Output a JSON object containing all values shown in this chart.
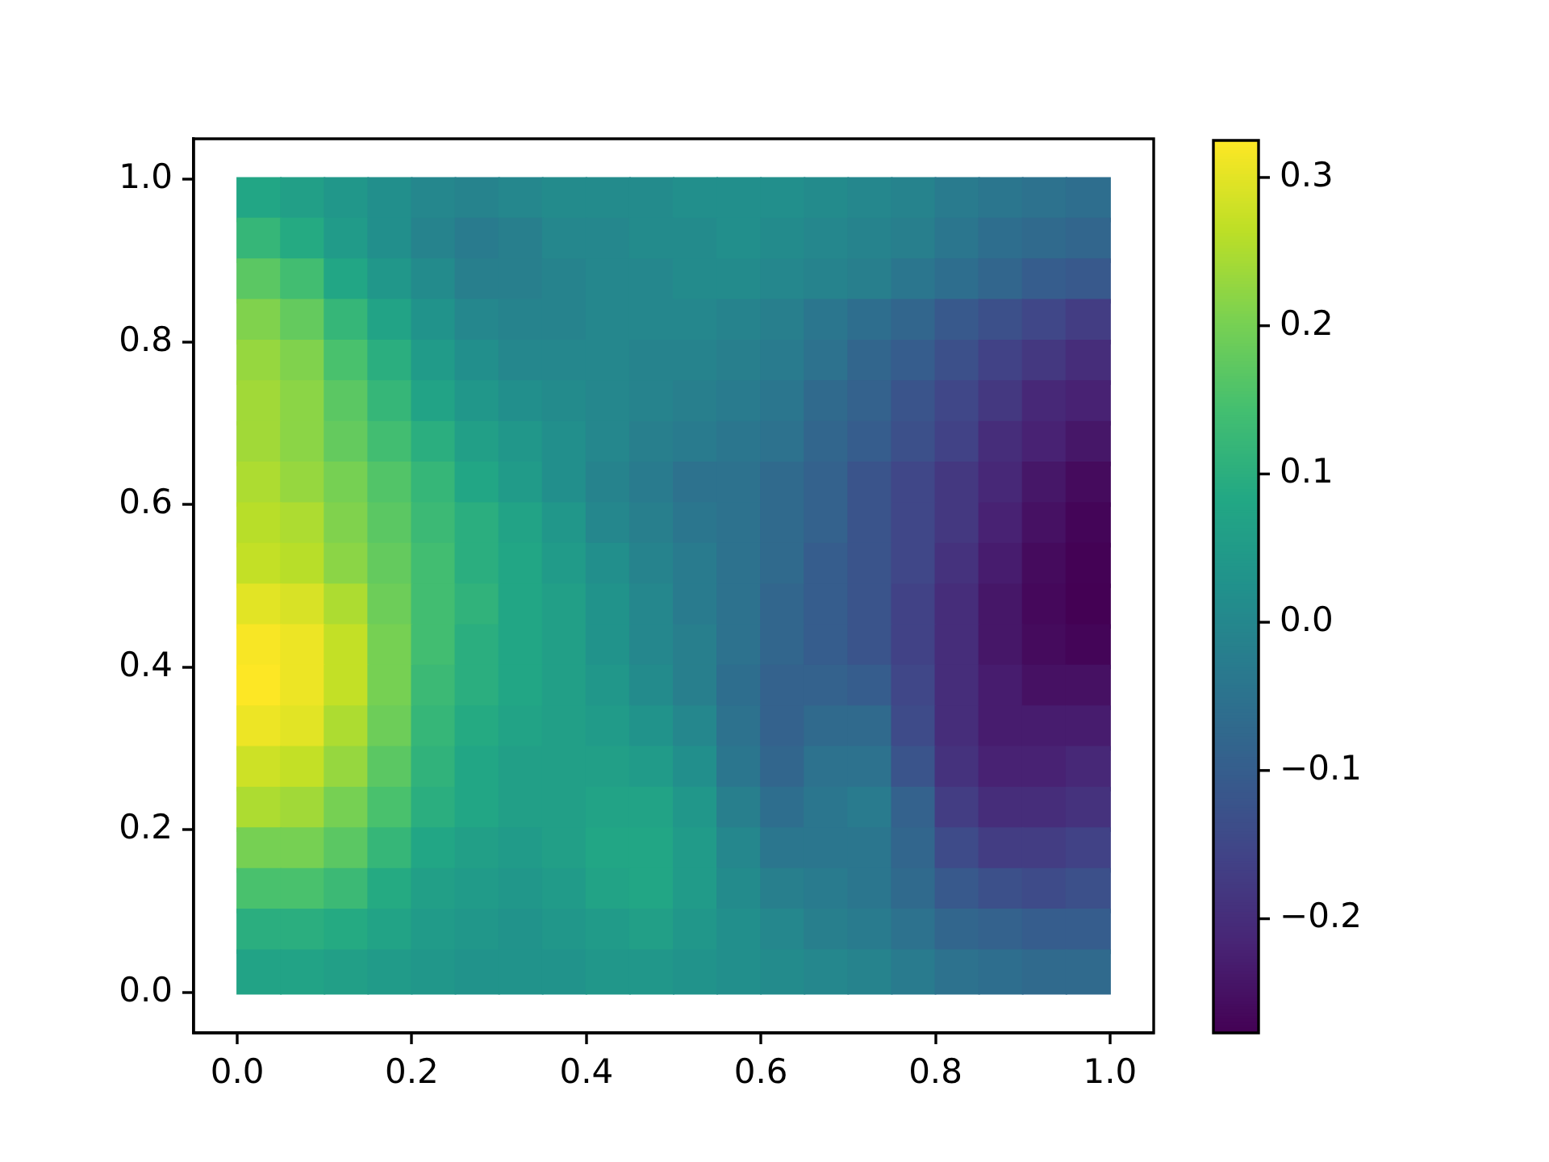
{
  "chart_data": {
    "type": "scatter",
    "marker": "square",
    "grid": false,
    "xlim": [
      -0.05,
      1.05
    ],
    "xticks": [
      {
        "value": 0,
        "label": "0.0"
      },
      0.2,
      0.4,
      0.6,
      0.8,
      {
        "value": 1,
        "label": "1.0"
      }
    ],
    "ylim": [
      -0.05,
      1.05
    ],
    "yticks": [
      {
        "value": 0,
        "label": "0.0"
      },
      0.2,
      0.4,
      0.6,
      0.8,
      {
        "value": 1,
        "label": "1.0"
      }
    ],
    "clim": [
      -0.277,
      0.325
    ],
    "cticks": [
      {
        "value": -0.2,
        "label": "−0.2"
      },
      {
        "value": -0.1,
        "label": "−0.1"
      },
      {
        "value": 0,
        "label": "0.0"
      },
      0.1,
      0.2,
      0.3
    ],
    "x": [
      0.025,
      0.075,
      0.125,
      0.175,
      0.225,
      0.275,
      0.325,
      0.375,
      0.425,
      0.475,
      0.525,
      0.575,
      0.625,
      0.675,
      0.725,
      0.775,
      0.825,
      0.875,
      0.925,
      0.975,
      0.025,
      0.075,
      0.125,
      0.175,
      0.225,
      0.275,
      0.325,
      0.375,
      0.425,
      0.475,
      0.525,
      0.575,
      0.625,
      0.675,
      0.725,
      0.775,
      0.825,
      0.875,
      0.925,
      0.975,
      0.025,
      0.075,
      0.125,
      0.175,
      0.225,
      0.275,
      0.325,
      0.375,
      0.425,
      0.475,
      0.525,
      0.575,
      0.625,
      0.675,
      0.725,
      0.775,
      0.825,
      0.875,
      0.925,
      0.975,
      0.025,
      0.075,
      0.125,
      0.175,
      0.225,
      0.275,
      0.325,
      0.375,
      0.425,
      0.475,
      0.525,
      0.575,
      0.625,
      0.675,
      0.725,
      0.775,
      0.825,
      0.875,
      0.925,
      0.975,
      0.025,
      0.075,
      0.125,
      0.175,
      0.225,
      0.275,
      0.325,
      0.375,
      0.425,
      0.475,
      0.525,
      0.575,
      0.625,
      0.675,
      0.725,
      0.775,
      0.825,
      0.875,
      0.925,
      0.975,
      0.025,
      0.075,
      0.125,
      0.175,
      0.225,
      0.275,
      0.325,
      0.375,
      0.425,
      0.475,
      0.525,
      0.575,
      0.625,
      0.675,
      0.725,
      0.775,
      0.825,
      0.875,
      0.925,
      0.975,
      0.025,
      0.075,
      0.125,
      0.175,
      0.225,
      0.275,
      0.325,
      0.375,
      0.425,
      0.475,
      0.525,
      0.575,
      0.625,
      0.675,
      0.725,
      0.775,
      0.825,
      0.875,
      0.925,
      0.975,
      0.025,
      0.075,
      0.125,
      0.175,
      0.225,
      0.275,
      0.325,
      0.375,
      0.425,
      0.475,
      0.525,
      0.575,
      0.625,
      0.675,
      0.725,
      0.775,
      0.825,
      0.875,
      0.925,
      0.975,
      0.025,
      0.075,
      0.125,
      0.175,
      0.225,
      0.275,
      0.325,
      0.375,
      0.425,
      0.475,
      0.525,
      0.575,
      0.625,
      0.675,
      0.725,
      0.775,
      0.825,
      0.875,
      0.925,
      0.975,
      0.025,
      0.075,
      0.125,
      0.175,
      0.225,
      0.275,
      0.325,
      0.375,
      0.425,
      0.475,
      0.525,
      0.575,
      0.625,
      0.675,
      0.725,
      0.775,
      0.825,
      0.875,
      0.925,
      0.975,
      0.025,
      0.075,
      0.125,
      0.175,
      0.225,
      0.275,
      0.325,
      0.375,
      0.425,
      0.475,
      0.525,
      0.575,
      0.625,
      0.675,
      0.725,
      0.775,
      0.825,
      0.875,
      0.925,
      0.975,
      0.025,
      0.075,
      0.125,
      0.175,
      0.225,
      0.275,
      0.325,
      0.375,
      0.425,
      0.475,
      0.525,
      0.575,
      0.625,
      0.675,
      0.725,
      0.775,
      0.825,
      0.875,
      0.925,
      0.975,
      0.025,
      0.075,
      0.125,
      0.175,
      0.225,
      0.275,
      0.325,
      0.375,
      0.425,
      0.475,
      0.525,
      0.575,
      0.625,
      0.675,
      0.725,
      0.775,
      0.825,
      0.875,
      0.925,
      0.975,
      0.025,
      0.075,
      0.125,
      0.175,
      0.225,
      0.275,
      0.325,
      0.375,
      0.425,
      0.475,
      0.525,
      0.575,
      0.625,
      0.675,
      0.725,
      0.775,
      0.825,
      0.875,
      0.925,
      0.975,
      0.025,
      0.075,
      0.125,
      0.175,
      0.225,
      0.275,
      0.325,
      0.375,
      0.425,
      0.475,
      0.525,
      0.575,
      0.625,
      0.675,
      0.725,
      0.775,
      0.825,
      0.875,
      0.925,
      0.975,
      0.025,
      0.075,
      0.125,
      0.175,
      0.225,
      0.275,
      0.325,
      0.375,
      0.425,
      0.475,
      0.525,
      0.575,
      0.625,
      0.675,
      0.725,
      0.775,
      0.825,
      0.875,
      0.925,
      0.975,
      0.025,
      0.075,
      0.125,
      0.175,
      0.225,
      0.275,
      0.325,
      0.375,
      0.425,
      0.475,
      0.525,
      0.575,
      0.625,
      0.675,
      0.725,
      0.775,
      0.825,
      0.875,
      0.925,
      0.975,
      0.025,
      0.075,
      0.125,
      0.175,
      0.225,
      0.275,
      0.325,
      0.375,
      0.425,
      0.475,
      0.525,
      0.575,
      0.625,
      0.675,
      0.725,
      0.775,
      0.825,
      0.875,
      0.925,
      0.975,
      0.025,
      0.075,
      0.125,
      0.175,
      0.225,
      0.275,
      0.325,
      0.375,
      0.425,
      0.475,
      0.525,
      0.575,
      0.625,
      0.675,
      0.725,
      0.775,
      0.825,
      0.875,
      0.925,
      0.975,
      0.025,
      0.075,
      0.125,
      0.175,
      0.225,
      0.275,
      0.325,
      0.375,
      0.425,
      0.475,
      0.525,
      0.575,
      0.625,
      0.675,
      0.725,
      0.775,
      0.825,
      0.875,
      0.925,
      0.975
    ],
    "values": [
      0.975,
      0.975,
      0.975,
      0.975,
      0.975,
      0.975,
      0.975,
      0.975,
      0.975,
      0.975,
      0.975,
      0.975,
      0.975,
      0.975,
      0.975,
      0.975,
      0.975,
      0.975,
      0.975,
      0.975,
      0.925,
      0.925,
      0.925,
      0.925,
      0.925,
      0.925,
      0.925,
      0.925,
      0.925,
      0.925,
      0.925,
      0.925,
      0.925,
      0.925,
      0.925,
      0.925,
      0.925,
      0.925,
      0.925,
      0.925,
      0.875,
      0.875,
      0.875,
      0.875,
      0.875,
      0.875,
      0.875,
      0.875,
      0.875,
      0.875,
      0.875,
      0.875,
      0.875,
      0.875,
      0.875,
      0.875,
      0.875,
      0.875,
      0.875,
      0.875,
      0.825,
      0.825,
      0.825,
      0.825,
      0.825,
      0.825,
      0.825,
      0.825,
      0.825,
      0.825,
      0.825,
      0.825,
      0.825,
      0.825,
      0.825,
      0.825,
      0.825,
      0.825,
      0.825,
      0.825,
      0.775,
      0.775,
      0.775,
      0.775,
      0.775,
      0.775,
      0.775,
      0.775,
      0.775,
      0.775,
      0.775,
      0.775,
      0.775,
      0.775,
      0.775,
      0.775,
      0.775,
      0.775,
      0.775,
      0.775,
      0.725,
      0.725,
      0.725,
      0.725,
      0.725,
      0.725,
      0.725,
      0.725,
      0.725,
      0.725,
      0.725,
      0.725,
      0.725,
      0.725,
      0.725,
      0.725,
      0.725,
      0.725,
      0.725,
      0.725,
      0.675,
      0.675,
      0.675,
      0.675,
      0.675,
      0.675,
      0.675,
      0.675,
      0.675,
      0.675,
      0.675,
      0.675,
      0.675,
      0.675,
      0.675,
      0.675,
      0.675,
      0.675,
      0.675,
      0.675,
      0.625,
      0.625,
      0.625,
      0.625,
      0.625,
      0.625,
      0.625,
      0.625,
      0.625,
      0.625,
      0.625,
      0.625,
      0.625,
      0.625,
      0.625,
      0.625,
      0.625,
      0.625,
      0.625,
      0.625,
      0.575,
      0.575,
      0.575,
      0.575,
      0.575,
      0.575,
      0.575,
      0.575,
      0.575,
      0.575,
      0.575,
      0.575,
      0.575,
      0.575,
      0.575,
      0.575,
      0.575,
      0.575,
      0.575,
      0.575,
      0.525,
      0.525,
      0.525,
      0.525,
      0.525,
      0.525,
      0.525,
      0.525,
      0.525,
      0.525,
      0.525,
      0.525,
      0.525,
      0.525,
      0.525,
      0.525,
      0.525,
      0.525,
      0.525,
      0.525,
      0.475,
      0.475,
      0.475,
      0.475,
      0.475,
      0.475,
      0.475,
      0.475,
      0.475,
      0.475,
      0.475,
      0.475,
      0.475,
      0.475,
      0.475,
      0.475,
      0.475,
      0.475,
      0.475,
      0.475,
      0.425,
      0.425,
      0.425,
      0.425,
      0.425,
      0.425,
      0.425,
      0.425,
      0.425,
      0.425,
      0.425,
      0.425,
      0.425,
      0.425,
      0.425,
      0.425,
      0.425,
      0.425,
      0.425,
      0.425,
      0.375,
      0.375,
      0.375,
      0.375,
      0.375,
      0.375,
      0.375,
      0.375,
      0.375,
      0.375,
      0.375,
      0.375,
      0.375,
      0.375,
      0.375,
      0.375,
      0.375,
      0.375,
      0.375,
      0.375,
      0.325,
      0.325,
      0.325,
      0.325,
      0.325,
      0.325,
      0.325,
      0.325,
      0.325,
      0.325,
      0.325,
      0.325,
      0.325,
      0.325,
      0.325,
      0.325,
      0.325,
      0.325,
      0.325,
      0.325,
      0.275,
      0.275,
      0.275,
      0.275,
      0.275,
      0.275,
      0.275,
      0.275,
      0.275,
      0.275,
      0.275,
      0.275,
      0.275,
      0.275,
      0.275,
      0.275,
      0.275,
      0.275,
      0.275,
      0.275,
      0.225,
      0.225,
      0.225,
      0.225,
      0.225,
      0.225,
      0.225,
      0.225,
      0.225,
      0.225,
      0.225,
      0.225,
      0.225,
      0.225,
      0.225,
      0.225,
      0.225,
      0.225,
      0.225,
      0.225,
      0.175,
      0.175,
      0.175,
      0.175,
      0.175,
      0.175,
      0.175,
      0.175,
      0.175,
      0.175,
      0.175,
      0.175,
      0.175,
      0.175,
      0.175,
      0.175,
      0.175,
      0.175,
      0.175,
      0.175,
      0.125,
      0.125,
      0.125,
      0.125,
      0.125,
      0.125,
      0.125,
      0.125,
      0.125,
      0.125,
      0.125,
      0.125,
      0.125,
      0.125,
      0.125,
      0.125,
      0.125,
      0.125,
      0.125,
      0.125,
      0.075,
      0.075,
      0.075,
      0.075,
      0.075,
      0.075,
      0.075,
      0.075,
      0.075,
      0.075,
      0.075,
      0.075,
      0.075,
      0.075,
      0.075,
      0.075,
      0.075,
      0.075,
      0.075,
      0.075,
      0.025,
      0.025,
      0.025,
      0.025,
      0.025,
      0.025,
      0.025,
      0.025,
      0.025,
      0.025,
      0.025,
      0.025,
      0.025,
      0.025,
      0.025,
      0.025,
      0.025,
      0.025,
      0.025,
      0.025
    ],
    "cvalues": [
      0.08,
      0.06,
      0.04,
      0.02,
      0.0,
      -0.01,
      0.0,
      0.01,
      0.01,
      0.01,
      0.02,
      0.02,
      0.02,
      0.01,
      0.0,
      -0.01,
      -0.03,
      -0.04,
      -0.05,
      -0.06,
      0.12,
      0.09,
      0.05,
      0.02,
      -0.01,
      -0.03,
      -0.02,
      0.0,
      0.0,
      0.01,
      0.01,
      0.02,
      0.01,
      0.0,
      -0.01,
      -0.02,
      -0.04,
      -0.06,
      -0.07,
      -0.08,
      0.17,
      0.14,
      0.08,
      0.04,
      0.01,
      -0.02,
      -0.02,
      -0.01,
      0.0,
      0.0,
      0.01,
      0.01,
      0.0,
      -0.01,
      -0.02,
      -0.04,
      -0.06,
      -0.08,
      -0.1,
      -0.11,
      0.21,
      0.18,
      0.12,
      0.07,
      0.03,
      0.0,
      -0.01,
      -0.01,
      0.0,
      0.0,
      0.0,
      -0.01,
      -0.02,
      -0.04,
      -0.06,
      -0.08,
      -0.11,
      -0.13,
      -0.15,
      -0.17,
      0.23,
      0.21,
      0.15,
      0.1,
      0.05,
      0.02,
      0.0,
      0.0,
      0.0,
      -0.01,
      -0.01,
      -0.02,
      -0.03,
      -0.05,
      -0.08,
      -0.1,
      -0.13,
      -0.16,
      -0.18,
      -0.2,
      0.24,
      0.22,
      0.17,
      0.12,
      0.07,
      0.04,
      0.02,
      0.01,
      0.0,
      -0.01,
      -0.02,
      -0.03,
      -0.04,
      -0.07,
      -0.09,
      -0.12,
      -0.15,
      -0.18,
      -0.21,
      -0.22,
      0.24,
      0.22,
      0.18,
      0.14,
      0.1,
      0.06,
      0.04,
      0.02,
      0.0,
      -0.02,
      -0.03,
      -0.04,
      -0.05,
      -0.08,
      -0.1,
      -0.13,
      -0.16,
      -0.2,
      -0.22,
      -0.24,
      0.25,
      0.23,
      0.2,
      0.16,
      0.12,
      0.08,
      0.05,
      0.02,
      -0.01,
      -0.03,
      -0.05,
      -0.05,
      -0.07,
      -0.09,
      -0.12,
      -0.15,
      -0.18,
      -0.21,
      -0.24,
      -0.26,
      0.26,
      0.25,
      0.21,
      0.17,
      0.13,
      0.1,
      0.07,
      0.04,
      0.0,
      -0.02,
      -0.04,
      -0.05,
      -0.07,
      -0.09,
      -0.12,
      -0.15,
      -0.18,
      -0.22,
      -0.25,
      -0.27,
      0.27,
      0.26,
      0.22,
      0.18,
      0.14,
      0.1,
      0.08,
      0.05,
      0.02,
      -0.01,
      -0.03,
      -0.05,
      -0.07,
      -0.1,
      -0.12,
      -0.15,
      -0.19,
      -0.23,
      -0.26,
      -0.275,
      0.3,
      0.29,
      0.25,
      0.19,
      0.14,
      0.11,
      0.08,
      0.06,
      0.03,
      0.0,
      -0.03,
      -0.05,
      -0.08,
      -0.1,
      -0.12,
      -0.16,
      -0.2,
      -0.24,
      -0.265,
      -0.277,
      0.32,
      0.31,
      0.27,
      0.2,
      0.14,
      0.1,
      0.08,
      0.06,
      0.03,
      0.0,
      -0.02,
      -0.05,
      -0.08,
      -0.1,
      -0.12,
      -0.16,
      -0.2,
      -0.24,
      -0.26,
      -0.27,
      0.325,
      0.31,
      0.27,
      0.2,
      0.13,
      0.1,
      0.08,
      0.06,
      0.04,
      0.01,
      -0.02,
      -0.06,
      -0.09,
      -0.09,
      -0.1,
      -0.15,
      -0.2,
      -0.23,
      -0.25,
      -0.25,
      0.31,
      0.3,
      0.25,
      0.19,
      0.12,
      0.09,
      0.07,
      0.06,
      0.05,
      0.03,
      0.0,
      -0.05,
      -0.09,
      -0.07,
      -0.07,
      -0.14,
      -0.2,
      -0.23,
      -0.23,
      -0.23,
      0.28,
      0.27,
      0.23,
      0.17,
      0.11,
      0.08,
      0.06,
      0.06,
      0.06,
      0.05,
      0.02,
      -0.04,
      -0.08,
      -0.05,
      -0.05,
      -0.12,
      -0.19,
      -0.22,
      -0.22,
      -0.21,
      0.25,
      0.24,
      0.2,
      0.15,
      0.1,
      0.08,
      0.06,
      0.06,
      0.07,
      0.07,
      0.04,
      -0.02,
      -0.06,
      -0.04,
      -0.03,
      -0.09,
      -0.17,
      -0.2,
      -0.2,
      -0.19,
      0.2,
      0.2,
      0.17,
      0.12,
      0.08,
      0.06,
      0.05,
      0.06,
      0.08,
      0.08,
      0.05,
      0.0,
      -0.04,
      -0.04,
      -0.04,
      -0.08,
      -0.14,
      -0.17,
      -0.17,
      -0.16,
      0.15,
      0.15,
      0.13,
      0.09,
      0.06,
      0.05,
      0.04,
      0.05,
      0.07,
      0.08,
      0.05,
      0.01,
      -0.02,
      -0.03,
      -0.04,
      -0.07,
      -0.11,
      -0.13,
      -0.14,
      -0.13,
      0.1,
      0.1,
      0.09,
      0.07,
      0.05,
      0.04,
      0.03,
      0.04,
      0.05,
      0.06,
      0.04,
      0.02,
      0.0,
      -0.02,
      -0.03,
      -0.05,
      -0.08,
      -0.09,
      -0.1,
      -0.1,
      0.07,
      0.07,
      0.06,
      0.05,
      0.04,
      0.03,
      0.03,
      0.03,
      0.04,
      0.04,
      0.03,
      0.02,
      0.01,
      0.0,
      -0.01,
      -0.03,
      -0.05,
      -0.06,
      -0.07,
      -0.07
    ]
  }
}
